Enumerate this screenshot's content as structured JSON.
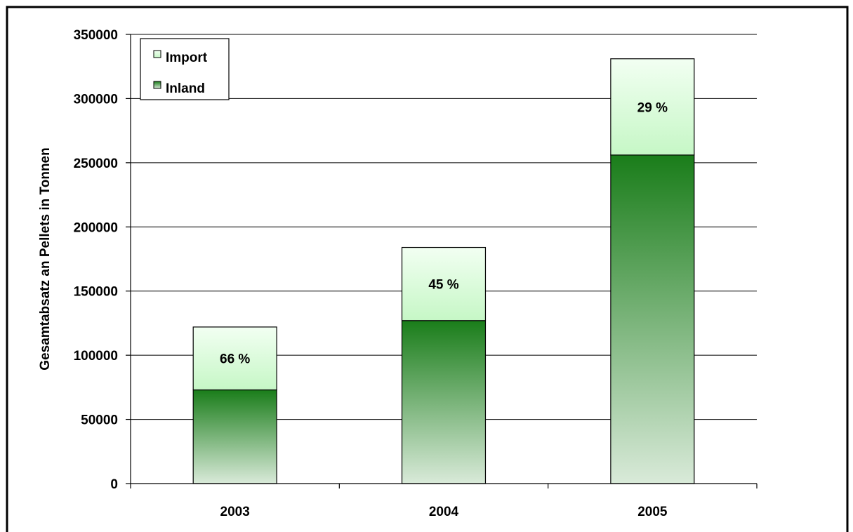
{
  "chart_data": {
    "type": "bar",
    "stacked": true,
    "categories": [
      "2003",
      "2004",
      "2005"
    ],
    "series": [
      {
        "name": "Inland",
        "values": [
          73000,
          127000,
          256000
        ]
      },
      {
        "name": "Import",
        "values": [
          49000,
          57000,
          75000
        ]
      }
    ],
    "bar_labels": [
      "66 %",
      "45 %",
      "29 %"
    ],
    "xlabel": "",
    "ylabel": "Gesamtabsatz an Pellets in Tonnen",
    "ylim": [
      0,
      350000
    ],
    "yticks": [
      0,
      50000,
      100000,
      150000,
      200000,
      250000,
      300000,
      350000
    ],
    "grid": true,
    "legend_position": "top-left",
    "colors": {
      "inland_top": "#1a7d1a",
      "inland_bottom": "#d9ead9",
      "import_top": "#f2fff2",
      "import_bottom": "#c6f7c6",
      "border": "#000000",
      "grid": "#000000"
    }
  }
}
